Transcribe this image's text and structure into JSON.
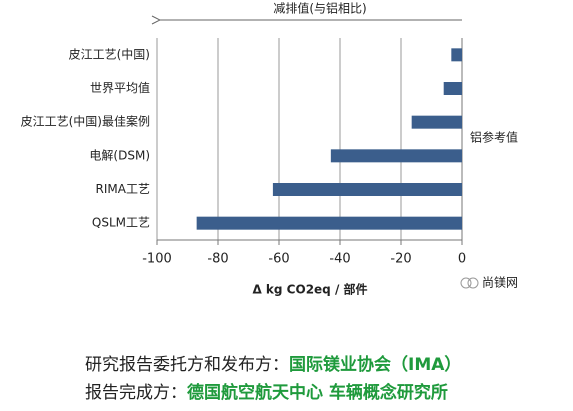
{
  "chart_data": {
    "type": "bar",
    "orientation": "horizontal",
    "categories": [
      "皮江工艺(中国)",
      "世界平均值",
      "皮江工艺(中国)最佳案例",
      "电解(DSM)",
      "RIMA工艺",
      "QSLM工艺"
    ],
    "values": [
      -3.5,
      -6,
      -16.5,
      -43,
      -62,
      -87
    ],
    "color": "#3b5e8c",
    "xlim": [
      -100,
      0
    ],
    "xticks": [
      -100,
      -80,
      -60,
      -40,
      -20,
      0
    ],
    "grid": true,
    "xlabel": "Δ kg CO2eq / 部件",
    "arrow_label": "减排值(与铝相比)",
    "reference_label": "铝参考值"
  },
  "watermark": "尚镁网",
  "footer": {
    "line1_label": "研究报告委托方和发布方：",
    "line1_value": "国际镁业协会（IMA）",
    "line2_label": "报告完成方：",
    "line2_value": "德国航空航天中心 车辆概念研究所",
    "highlight_color": "#1f9a3c"
  }
}
